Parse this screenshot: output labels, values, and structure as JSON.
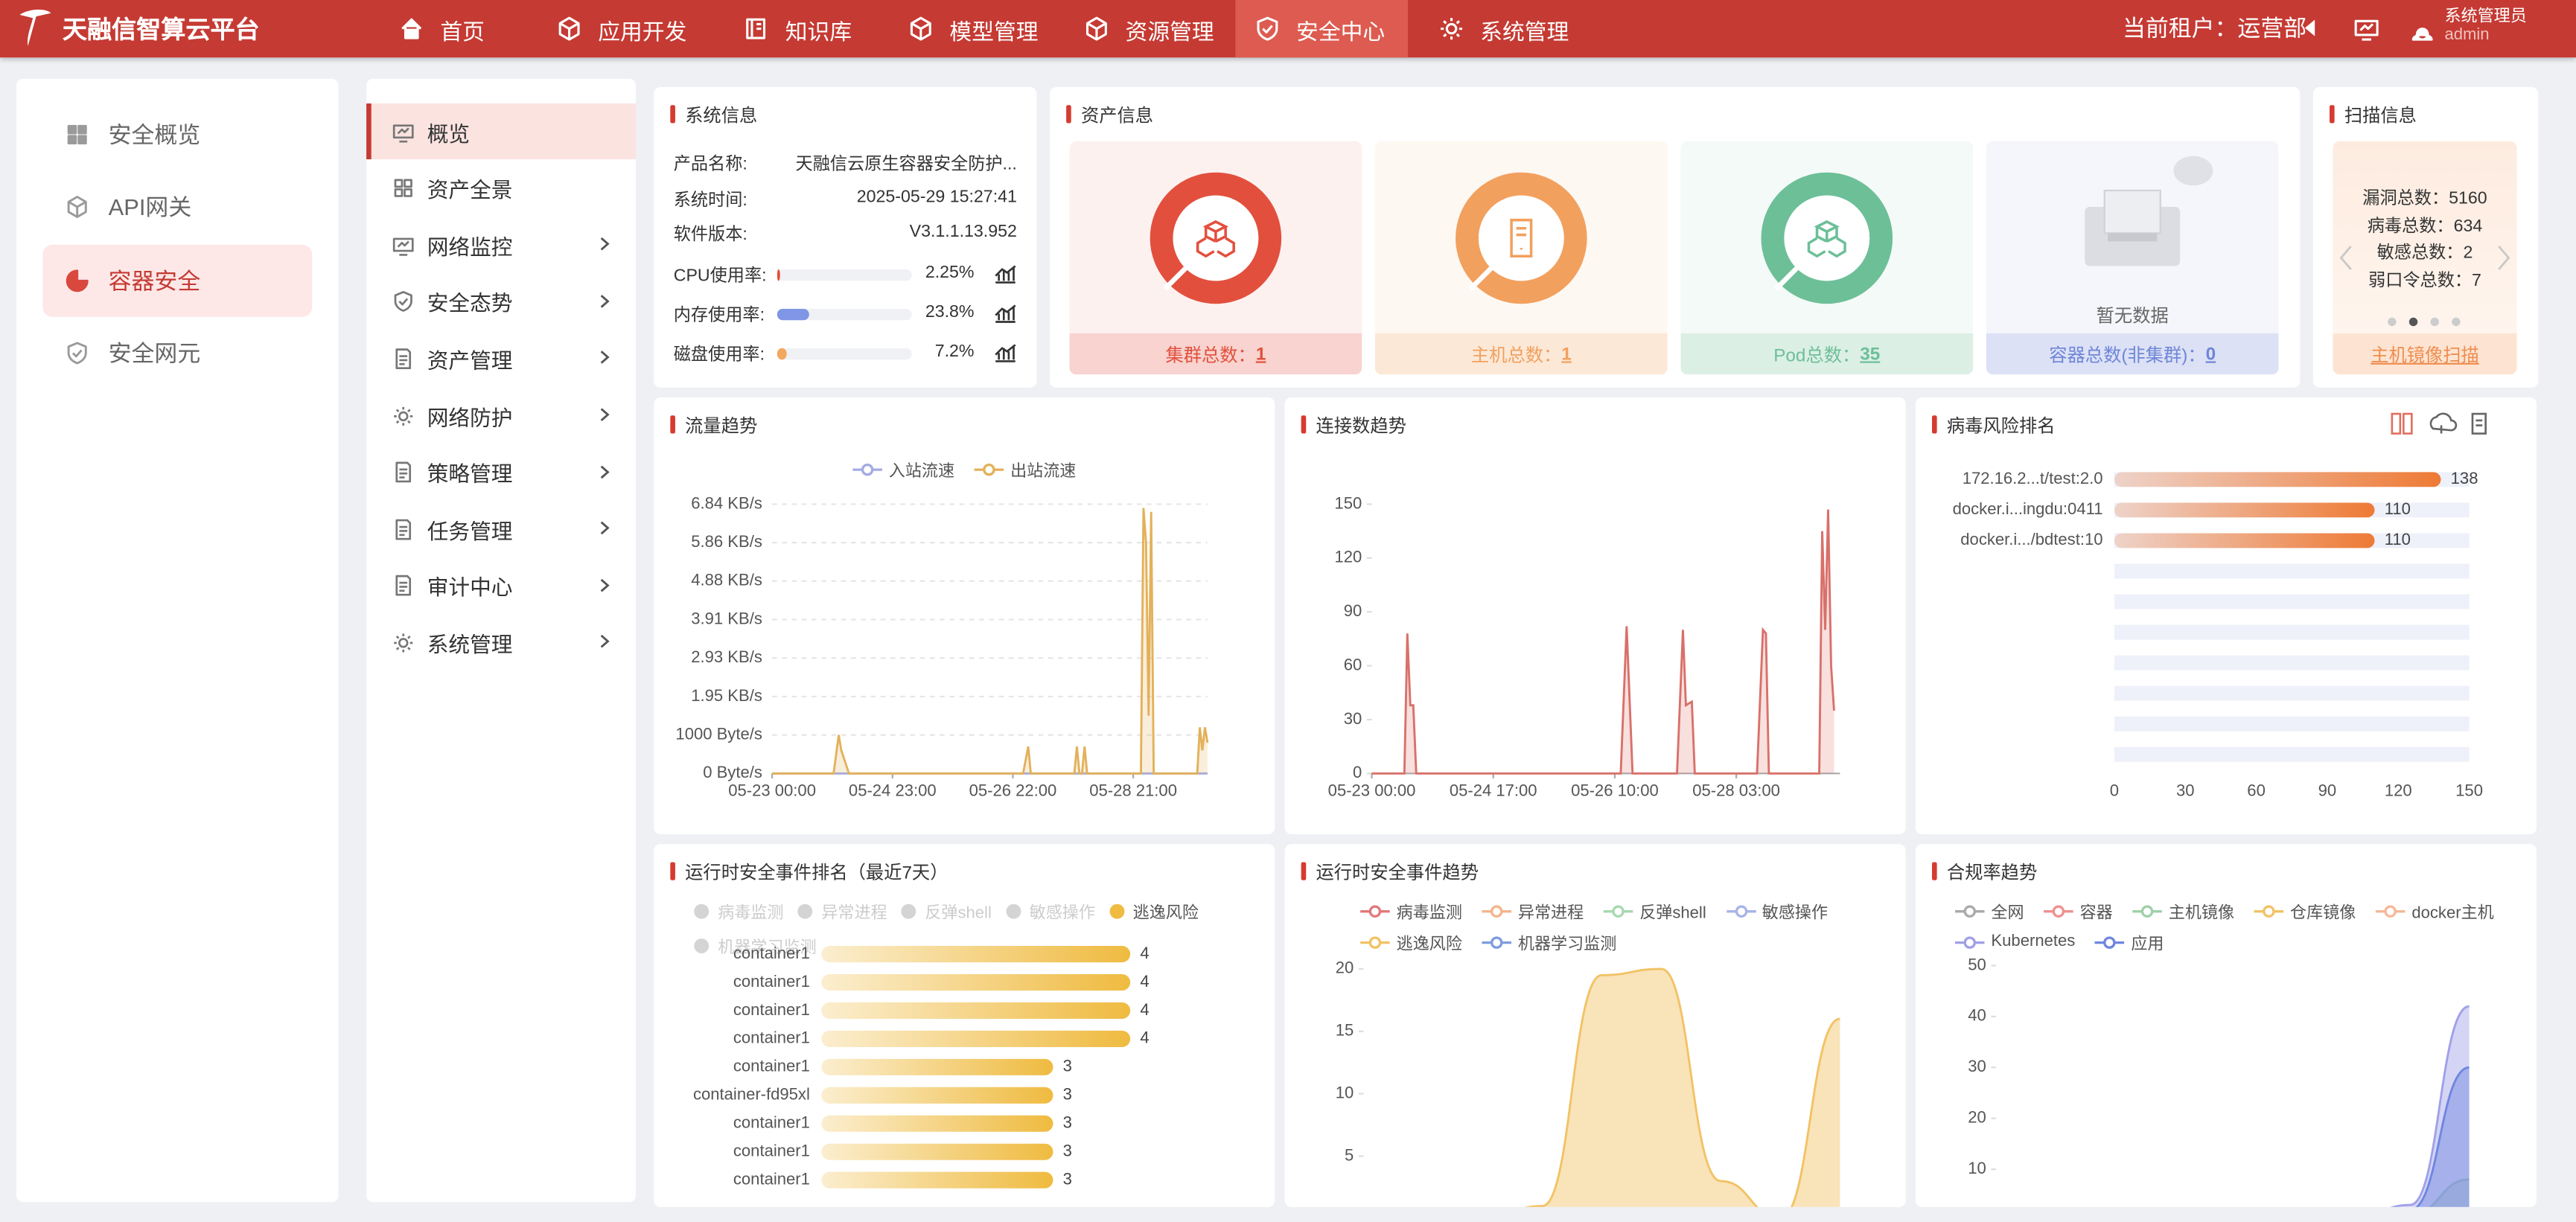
{
  "header": {
    "logo": "天融信智算云平台",
    "nav": [
      "首页",
      "应用开发",
      "知识库",
      "模型管理",
      "资源管理",
      "安全中心",
      "系统管理"
    ],
    "active_nav": 5,
    "tenant": "当前租户：运营部",
    "user_role": "系统管理员",
    "user_name": "admin"
  },
  "sidebar": {
    "items": [
      "安全概览",
      "API网关",
      "容器安全",
      "安全网元"
    ],
    "active": 2
  },
  "submenu": {
    "items": [
      "概览",
      "资产全景",
      "网络监控",
      "安全态势",
      "资产管理",
      "网络防护",
      "策略管理",
      "任务管理",
      "审计中心",
      "系统管理"
    ],
    "active": 0,
    "expandable": [
      false,
      false,
      true,
      true,
      true,
      true,
      true,
      true,
      true,
      true
    ]
  },
  "system_info": {
    "title": "系统信息",
    "rows": [
      {
        "label": "产品名称:",
        "value": "天融信云原生容器安全防护..."
      },
      {
        "label": "系统时间:",
        "value": "2025-05-29 15:27:41"
      },
      {
        "label": "软件版本:",
        "value": "V3.1.1.13.952"
      }
    ],
    "usage": [
      {
        "label": "CPU使用率:",
        "value": 2.25,
        "value_label": "2.25%",
        "color": "#e2503d"
      },
      {
        "label": "内存使用率:",
        "value": 23.8,
        "value_label": "23.8%",
        "color": "#7f95e6"
      },
      {
        "label": "磁盘使用率:",
        "value": 7.2,
        "value_label": "7.2%",
        "color": "#f2a85e"
      }
    ]
  },
  "asset_info": {
    "title": "资产信息",
    "cards": [
      {
        "label": "集群总数：",
        "value": 1,
        "color": "#e2503d"
      },
      {
        "label": "主机总数：",
        "value": 1,
        "color": "#f2a05e"
      },
      {
        "label": "Pod总数：",
        "value": 35,
        "color": "#6dbf98"
      },
      {
        "label": "容器总数(非集群)：",
        "value": 0,
        "color": "#6f86d8"
      }
    ],
    "empty_text": "暂无数据"
  },
  "scan_info": {
    "title": "扫描信息",
    "items": [
      {
        "label": "漏洞总数：",
        "value": 5160
      },
      {
        "label": "病毒总数：",
        "value": 634
      },
      {
        "label": "敏感总数：",
        "value": 2
      },
      {
        "label": "弱口令总数：",
        "value": 7
      }
    ],
    "link": "主机镜像扫描"
  },
  "chart_data": [
    {
      "type": "line",
      "title": "流量趋势",
      "grid": true,
      "area": true,
      "x": [
        0,
        20,
        24,
        26,
        27,
        30,
        60,
        98,
        100,
        101,
        117,
        118,
        119,
        120,
        121,
        122,
        123,
        140,
        144,
        145,
        146,
        147,
        148,
        149,
        160,
        166,
        167,
        168,
        169,
        170
      ],
      "xlim": [
        0,
        170
      ],
      "xticks": [
        {
          "value": 0,
          "label": "05-23 00:00"
        },
        {
          "value": 47,
          "label": "05-24 23:00"
        },
        {
          "value": 94,
          "label": "05-26 22:00"
        },
        {
          "value": 141,
          "label": "05-28 21:00"
        }
      ],
      "ylim": [
        0,
        7000
      ],
      "yticks": [
        {
          "value": 0,
          "label": "0 Byte/s"
        },
        {
          "value": 1000,
          "label": "1000 Byte/s"
        },
        {
          "value": 2000,
          "label": "1.95 KB/s"
        },
        {
          "value": 3000,
          "label": "2.93 KB/s"
        },
        {
          "value": 4000,
          "label": "3.91 KB/s"
        },
        {
          "value": 5000,
          "label": "4.88 KB/s"
        },
        {
          "value": 6000,
          "label": "5.86 KB/s"
        },
        {
          "value": 7000,
          "label": "6.84 KB/s"
        }
      ],
      "series": [
        {
          "name": "入站流速",
          "color": "#a3abe3",
          "values": [
            0,
            0,
            0,
            0,
            0,
            0,
            0,
            0,
            0,
            0,
            0,
            0,
            0,
            0,
            0,
            0,
            0,
            0,
            0,
            0,
            0,
            0,
            0,
            0,
            0,
            0,
            0,
            0,
            0,
            0
          ]
        },
        {
          "name": "出站流速",
          "color": "#e3b15a",
          "values": [
            0,
            0,
            0,
            1000,
            600,
            0,
            0,
            0,
            700,
            0,
            0,
            0,
            700,
            0,
            0,
            700,
            0,
            0,
            0,
            6900,
            6000,
            1500,
            6800,
            0,
            0,
            0,
            1200,
            600,
            1200,
            800
          ]
        }
      ]
    },
    {
      "type": "line",
      "title": "连接数趋势",
      "grid": false,
      "area": true,
      "color": "#d9706a",
      "x": [
        0,
        11,
        12,
        13,
        14,
        15,
        84,
        86,
        88,
        103,
        105,
        106,
        108,
        109,
        130,
        132,
        133,
        134,
        151,
        152,
        153,
        154,
        155,
        156
      ],
      "values": [
        0,
        0,
        78,
        38,
        38,
        0,
        0,
        82,
        0,
        0,
        80,
        38,
        40,
        0,
        0,
        80,
        78,
        0,
        0,
        135,
        80,
        147,
        60,
        35
      ],
      "xlim": [
        0,
        158
      ],
      "xticks": [
        {
          "value": 0,
          "label": "05-23 00:00"
        },
        {
          "value": 41,
          "label": "05-24 17:00"
        },
        {
          "value": 82,
          "label": "05-26 10:00"
        },
        {
          "value": 123,
          "label": "05-28 03:00"
        }
      ],
      "ylim": [
        0,
        150
      ],
      "yticks": [
        0,
        30,
        60,
        90,
        120,
        150
      ]
    },
    {
      "type": "hbar",
      "title": "病毒风险排名",
      "categories": [
        "172.16.2...t/test:2.0",
        "docker.i...ingdu:0411",
        "docker.i.../bdtest:10"
      ],
      "values": [
        138,
        110,
        110
      ],
      "color": "#ee7a35",
      "xlim": [
        0,
        150
      ],
      "xticks": [
        0,
        30,
        60,
        90,
        120,
        150
      ]
    },
    {
      "type": "hbar",
      "title": "运行时安全事件排名（最近7天）",
      "legend": [
        "病毒监测",
        "异常进程",
        "反弹shell",
        "敏感操作",
        "逃逸风险",
        "机器学习监测"
      ],
      "legend_active": 4,
      "categories": [
        "container1",
        "container1",
        "container1",
        "container1",
        "container1",
        "container-fd95xl",
        "container1",
        "container1",
        "container1"
      ],
      "values": [
        4,
        4,
        4,
        4,
        3,
        3,
        3,
        3,
        3
      ],
      "color": "#efbb40",
      "xlim": [
        0,
        5
      ]
    },
    {
      "type": "line",
      "title": "运行时安全事件趋势",
      "grid": false,
      "area": true,
      "smooth": true,
      "ylim": [
        0,
        20
      ],
      "yticks": [
        5,
        10,
        15,
        20
      ],
      "series": [
        {
          "name": "病毒监测",
          "color": "#e07a7a",
          "values": [
            0,
            0,
            0,
            0,
            0,
            0,
            0,
            0,
            0
          ]
        },
        {
          "name": "异常进程",
          "color": "#f4b58c",
          "values": [
            0,
            0,
            0,
            0,
            0,
            0,
            0,
            0,
            0
          ]
        },
        {
          "name": "反弹shell",
          "color": "#a8d8b0",
          "values": [
            0,
            0,
            0,
            0,
            0,
            0,
            0,
            0,
            0
          ]
        },
        {
          "name": "敏感操作",
          "color": "#a8b4e8",
          "values": [
            0,
            0,
            0,
            0,
            0,
            0,
            0,
            0,
            0
          ]
        },
        {
          "name": "逃逸风险",
          "color": "#f2c264",
          "values": [
            0,
            0,
            0,
            1,
            19.5,
            20,
            3,
            0,
            16
          ]
        },
        {
          "name": "机器学习监测",
          "color": "#7f9be0",
          "values": [
            0,
            0,
            0,
            0,
            0,
            0,
            0,
            0,
            0
          ]
        }
      ]
    },
    {
      "type": "line",
      "title": "合规率趋势",
      "grid": false,
      "area": true,
      "smooth": true,
      "ylim": [
        0,
        50
      ],
      "yticks": [
        10,
        20,
        30,
        40,
        50
      ],
      "series": [
        {
          "name": "全网",
          "color": "#aaaaaa",
          "values": [
            0,
            0,
            0,
            0,
            0,
            0,
            0,
            0,
            0
          ]
        },
        {
          "name": "容器",
          "color": "#f09090",
          "values": [
            0,
            0,
            0,
            0,
            0,
            0,
            0,
            0,
            0
          ]
        },
        {
          "name": "主机镜像",
          "color": "#9fd0a8",
          "values": [
            0,
            0,
            0,
            0,
            0,
            0,
            0,
            1,
            8
          ]
        },
        {
          "name": "仓库镜像",
          "color": "#f2c264",
          "values": [
            0,
            0,
            0,
            0,
            0,
            0,
            0,
            0,
            0
          ]
        },
        {
          "name": "docker主机",
          "color": "#f5b898",
          "values": [
            0,
            0,
            0,
            0,
            0,
            0,
            0,
            0,
            0
          ]
        },
        {
          "name": "Kubernetes",
          "color": "#a0a0e8",
          "values": [
            0,
            0,
            0,
            0,
            0,
            0,
            0,
            3,
            42
          ]
        },
        {
          "name": "应用",
          "color": "#6f86e0",
          "values": [
            0,
            0,
            0,
            0,
            0,
            0,
            0,
            2,
            30
          ]
        }
      ]
    }
  ]
}
